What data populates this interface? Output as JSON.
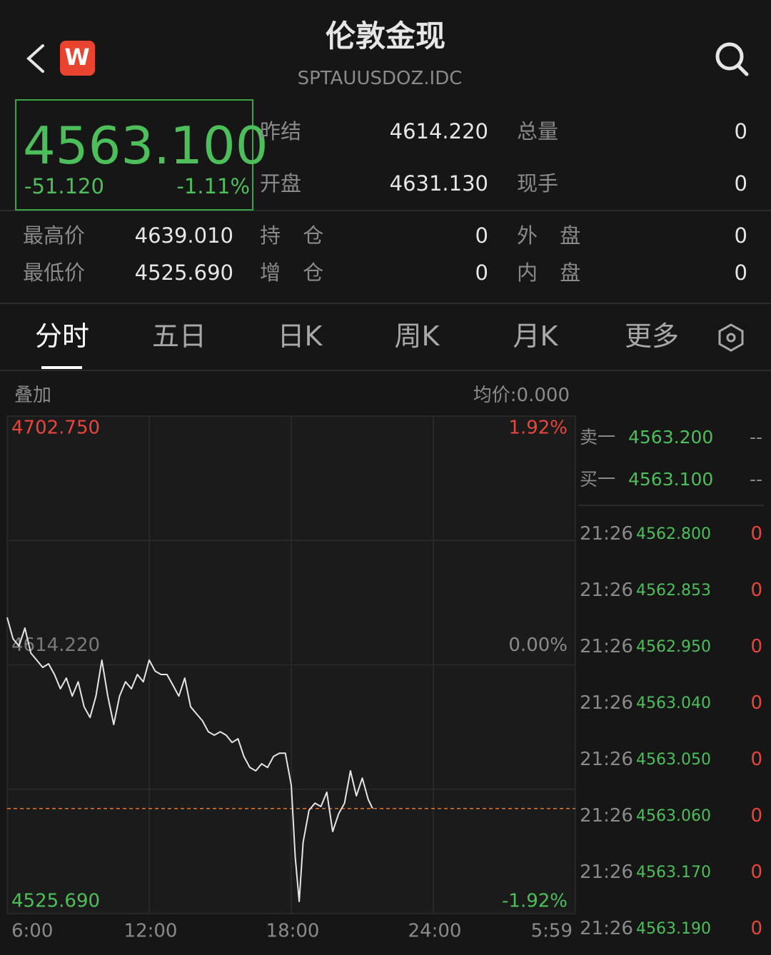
{
  "header": {
    "title": "伦敦金现",
    "subtitle": "SPTAUUSDOZ.IDC",
    "logo": "W"
  },
  "quote": {
    "price": "4563.100",
    "change": "-51.120",
    "change_pct": "-1.11%"
  },
  "stats": [
    {
      "label": "昨结",
      "value": "4614.220"
    },
    {
      "label": "总量",
      "value": "0"
    },
    {
      "label": "开盘",
      "value": "4631.130"
    },
    {
      "label": "现手",
      "value": "0"
    },
    {
      "label": "最高价",
      "value": "4639.010"
    },
    {
      "label": "持 仓",
      "value": "0"
    },
    {
      "label": "外 盘",
      "value": "0"
    },
    {
      "label": "最低价",
      "value": "4525.690"
    },
    {
      "label": "增 仓",
      "value": "0"
    },
    {
      "label": "内 盘",
      "value": "0"
    }
  ],
  "tabs": [
    "分时",
    "五日",
    "日K",
    "周K",
    "月K",
    "更多"
  ],
  "toolbar": {
    "overlay": "叠加",
    "avg": "均价:0.000"
  },
  "chart_data": {
    "type": "line",
    "x": [
      "06:00",
      "06:15",
      "06:30",
      "06:45",
      "07:00",
      "07:15",
      "07:30",
      "07:45",
      "08:00",
      "08:15",
      "08:30",
      "08:45",
      "09:00",
      "09:15",
      "09:30",
      "09:45",
      "10:00",
      "10:15",
      "10:30",
      "10:45",
      "11:00",
      "11:15",
      "11:30",
      "11:45",
      "12:00",
      "12:15",
      "12:30",
      "12:45",
      "13:00",
      "13:15",
      "13:30",
      "13:45",
      "14:00",
      "14:15",
      "14:30",
      "14:45",
      "15:00",
      "15:15",
      "15:30",
      "15:45",
      "16:00",
      "16:15",
      "16:30",
      "16:45",
      "17:00",
      "17:15",
      "17:30",
      "17:45",
      "18:00",
      "18:10",
      "18:20",
      "18:30",
      "18:45",
      "19:00",
      "19:15",
      "19:30",
      "19:45",
      "20:00",
      "20:15",
      "20:30",
      "20:45",
      "21:00",
      "21:15",
      "21:26"
    ],
    "series": [
      {
        "color": "#e6e6e6",
        "values": [
          4631.1,
          4623.5,
          4620.9,
          4627.3,
          4618.4,
          4615.9,
          4613.3,
          4614.6,
          4610.8,
          4605.7,
          4609.5,
          4603.1,
          4608.2,
          4599.3,
          4595.5,
          4603.1,
          4615.9,
          4603.1,
          4593.0,
          4603.1,
          4608.2,
          4605.7,
          4610.8,
          4608.2,
          4615.9,
          4612.0,
          4610.8,
          4610.8,
          4607.0,
          4603.1,
          4609.5,
          4599.3,
          4596.8,
          4594.3,
          4590.4,
          4589.2,
          4590.4,
          4589.2,
          4586.6,
          4587.9,
          4581.6,
          4577.7,
          4576.5,
          4579.0,
          4577.7,
          4581.6,
          4582.8,
          4582.8,
          4571.4,
          4546.0,
          4530.0,
          4551.1,
          4562.5,
          4565.0,
          4563.8,
          4568.9,
          4554.9,
          4561.2,
          4565.0,
          4576.5,
          4567.6,
          4573.9,
          4566.3,
          4563.1
        ]
      }
    ],
    "xlim": [
      "06:00",
      "05:59"
    ],
    "xticks": [
      {
        "value": "06:00",
        "label": "6:00"
      },
      "12:00",
      "18:00",
      "24:00",
      {
        "value": "05:59",
        "label": "5:59"
      }
    ],
    "ylim": [
      4525.69,
      4702.75
    ],
    "yticks": [
      {
        "value": 4702.75,
        "label": "4702.750"
      },
      {
        "value": 4614.22,
        "label": "4614.220"
      },
      {
        "value": 4525.69,
        "label": "4525.690"
      }
    ],
    "y2lim": [
      -1.92,
      1.92
    ],
    "y2ticks": [
      {
        "value": 1.92,
        "label": "1.92%"
      },
      {
        "value": 0,
        "label": "0.00%"
      },
      {
        "value": -1.92,
        "label": "-1.92%"
      }
    ],
    "current_price": 4563.1,
    "current_price_color": "#e0782c",
    "grid": true
  },
  "order_book": [
    {
      "label": "卖一",
      "price": "4563.200",
      "volume": "--"
    },
    {
      "label": "买一",
      "price": "4563.100",
      "volume": "--"
    }
  ],
  "trades": [
    {
      "time": "21:26",
      "price": "4562.800",
      "volume": "0"
    },
    {
      "time": "21:26",
      "price": "4562.853",
      "volume": "0"
    },
    {
      "time": "21:26",
      "price": "4562.950",
      "volume": "0"
    },
    {
      "time": "21:26",
      "price": "4563.040",
      "volume": "0"
    },
    {
      "time": "21:26",
      "price": "4563.050",
      "volume": "0"
    },
    {
      "time": "21:26",
      "price": "4563.060",
      "volume": "0"
    },
    {
      "time": "21:26",
      "price": "4563.170",
      "volume": "0"
    },
    {
      "time": "21:26",
      "price": "4563.190",
      "volume": "0"
    }
  ]
}
